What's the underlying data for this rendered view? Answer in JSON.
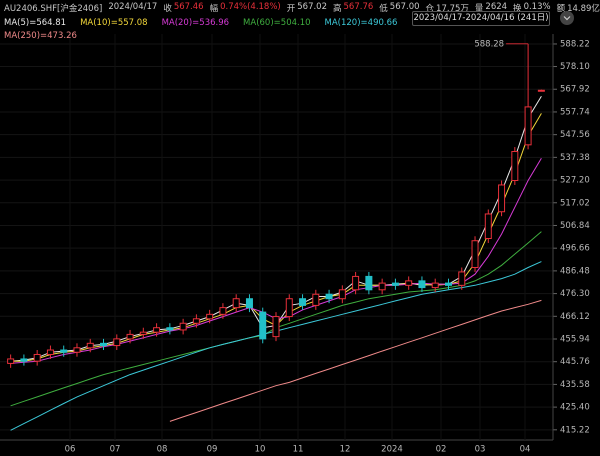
{
  "chart_data": {
    "type": "candlestick",
    "symbol": "AU2406.SHF[沪金2406]",
    "date": "2024/04/17",
    "quote": [
      {
        "label": "收",
        "value": "567.46"
      },
      {
        "label": "幅",
        "value": "0.74%(4.18%)"
      },
      {
        "label": "开",
        "value": "567.02"
      },
      {
        "label": "高",
        "value": "567.76"
      },
      {
        "label": "低",
        "value": "567.00"
      },
      {
        "label": "仓",
        "value": "17.75万"
      },
      {
        "label": "量",
        "value": "2624"
      },
      {
        "label": "换",
        "value": "0.13%"
      },
      {
        "label": "额",
        "value": "14.89亿"
      }
    ],
    "range": "2023/04/17-2024/04/16 (241日)",
    "xlabels": [
      "06",
      "07",
      "08",
      "09",
      "10",
      "11",
      "12",
      "2024",
      "02",
      "03",
      "04"
    ],
    "up_color": "#e8303a",
    "down_color": "#22c0c8",
    "open": [
      445,
      447,
      446,
      449,
      451,
      450,
      452,
      454,
      453,
      456,
      458,
      459,
      461,
      460,
      463,
      465,
      467,
      470,
      474,
      468,
      457,
      466,
      474,
      471,
      476,
      474,
      478,
      484,
      478,
      481,
      480,
      482,
      479,
      481,
      480,
      488,
      501,
      513,
      527,
      543,
      567.02
    ],
    "high": [
      449,
      449,
      451,
      453,
      453,
      454,
      456,
      456,
      458,
      460,
      461,
      463,
      463,
      465,
      467,
      469,
      472,
      476,
      476,
      470,
      468,
      476,
      476,
      478,
      478,
      480,
      486,
      486,
      483,
      483,
      484,
      484,
      483,
      483,
      488,
      502,
      514,
      527,
      542,
      588.28,
      567.76
    ],
    "low": [
      443,
      444,
      444,
      447,
      448,
      448,
      450,
      451,
      451,
      454,
      456,
      457,
      458,
      458,
      461,
      463,
      465,
      468,
      468,
      454,
      455,
      464,
      469,
      469,
      472,
      472,
      476,
      476,
      476,
      478,
      478,
      477,
      477,
      478,
      478,
      486,
      499,
      511,
      525,
      541,
      567.0
    ],
    "close": [
      447,
      446,
      449,
      451,
      450,
      452,
      454,
      453,
      456,
      458,
      459,
      461,
      460,
      463,
      465,
      467,
      470,
      474,
      470,
      456,
      466,
      474,
      471,
      476,
      474,
      478,
      484,
      478,
      481,
      480,
      482,
      479,
      481,
      480,
      486,
      500,
      512,
      525,
      540,
      560,
      567.46
    ],
    "series": [
      {
        "name": "MA(5)",
        "label": "564.81",
        "color": "#e8e8e8",
        "values": [
          446,
          446.5,
          447.5,
          450,
          450.5,
          451,
          453,
          453.5,
          455,
          457,
          458.5,
          460,
          460.5,
          462,
          464,
          466,
          469,
          472,
          471,
          461,
          462,
          471,
          472,
          475,
          475,
          477,
          482,
          480,
          480,
          480.5,
          481,
          480,
          480.5,
          480.5,
          484,
          496,
          509,
          522,
          537,
          555,
          564.81
        ]
      },
      {
        "name": "MA(10)",
        "label": "557.08",
        "color": "#f2d73a",
        "values": [
          446,
          446,
          447,
          449,
          450,
          450.5,
          452,
          453,
          454,
          456,
          458,
          459,
          460,
          461,
          463,
          465,
          467,
          470,
          471,
          465,
          462,
          468,
          471,
          473,
          475,
          476,
          480,
          480,
          480,
          480,
          481,
          480.5,
          480,
          480.5,
          482,
          490,
          503,
          516,
          530,
          547,
          557.08
        ]
      },
      {
        "name": "MA(20)",
        "label": "536.96",
        "color": "#d63ad6",
        "values": [
          445,
          445.5,
          446,
          447.5,
          449,
          450,
          451,
          452.5,
          453.5,
          455,
          456.5,
          458,
          459.5,
          460.5,
          462,
          464,
          466,
          468,
          470,
          468,
          465,
          466,
          469,
          471,
          473,
          475,
          478,
          479,
          480,
          480,
          480.5,
          481,
          480.5,
          480.5,
          481,
          485,
          493,
          503,
          515,
          527,
          536.96
        ]
      },
      {
        "name": "MA(60)",
        "label": "504.10",
        "color": "#3fae3f",
        "values": [
          426,
          428,
          430,
          432,
          434,
          436,
          438,
          440,
          441.5,
          443,
          444.5,
          446,
          447.5,
          449,
          450.5,
          452,
          453.5,
          455,
          456.5,
          457.5,
          461,
          463,
          465,
          467,
          469,
          471,
          472.5,
          474,
          475,
          476,
          477,
          477.5,
          478,
          479,
          480,
          482,
          485,
          489,
          494,
          499,
          504.1
        ]
      },
      {
        "name": "MA(120)",
        "label": "490.66",
        "color": "#3cc8d8",
        "values": [
          415,
          418,
          421,
          424,
          427,
          430,
          432.5,
          435,
          437.5,
          440,
          442,
          444,
          446,
          448,
          450,
          452,
          453.5,
          455,
          456.5,
          458,
          459.5,
          461,
          462.5,
          464,
          465.5,
          467,
          468.5,
          470,
          471.5,
          473,
          474.5,
          476,
          477,
          478,
          479,
          480,
          481.5,
          483,
          485,
          488,
          490.66
        ]
      },
      {
        "name": "MA(250)",
        "label": "473.26",
        "color": "#f08a8a",
        "values": [
          null,
          null,
          null,
          null,
          null,
          null,
          null,
          null,
          null,
          null,
          null,
          null,
          419,
          421,
          423,
          425,
          427,
          429,
          431,
          433,
          435,
          436.5,
          438.5,
          440.5,
          442.5,
          444.5,
          446.5,
          448.5,
          450.5,
          452.5,
          454.5,
          456.5,
          458.5,
          460.5,
          462.5,
          464.5,
          466.5,
          468.5,
          470,
          471.5,
          473.26
        ]
      }
    ],
    "ylim": [
      412,
      590
    ],
    "yticks": [
      588.22,
      {
        "value": 578.1,
        "label": "578.10"
      },
      567.92,
      557.74,
      547.56,
      537.38,
      {
        "value": 527.2,
        "label": "527.20"
      },
      517.02,
      506.84,
      496.66,
      486.48,
      {
        "value": 476.3,
        "label": "476.30"
      },
      466.12,
      455.94,
      445.76,
      435.58,
      {
        "value": 425.4,
        "label": "425.40"
      },
      415.22
    ],
    "grid": true
  }
}
